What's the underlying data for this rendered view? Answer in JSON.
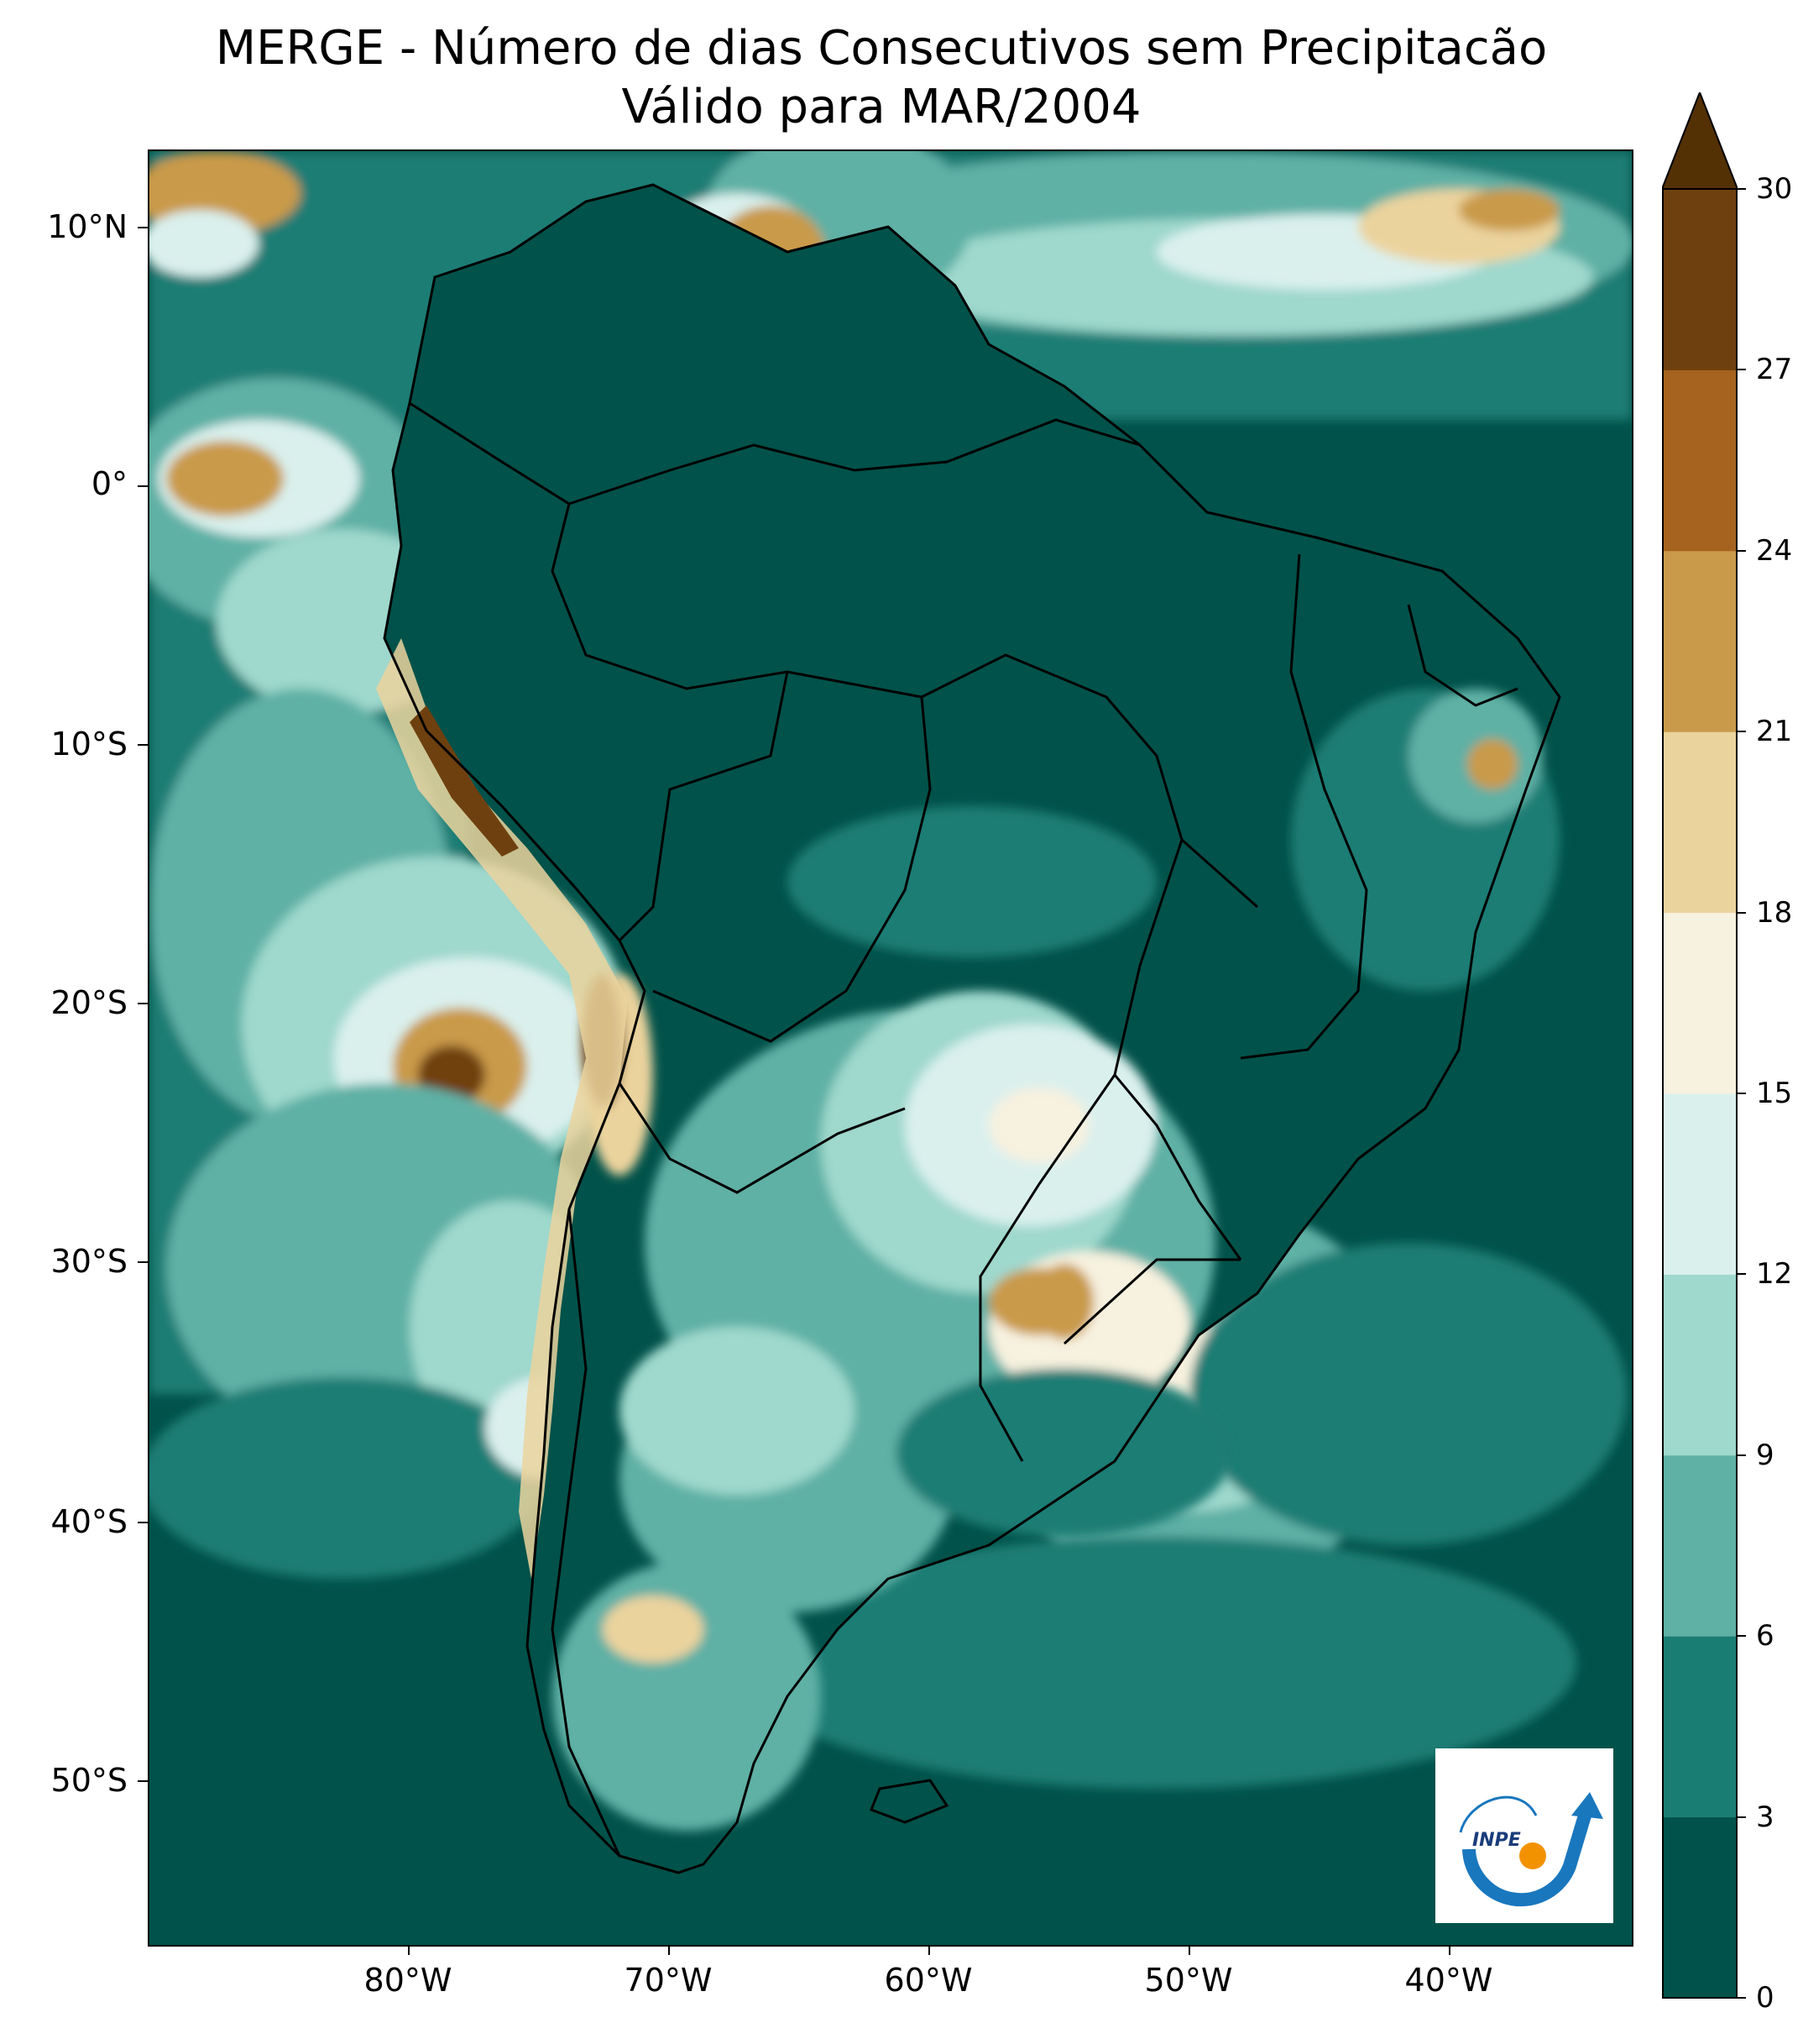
{
  "title": {
    "line1": "MERGE - Número de dias Consecutivos sem Precipitacão",
    "line2": "Válido para MAR/2004"
  },
  "axes": {
    "lat_labels": [
      "10°N",
      "0°",
      "10°S",
      "20°S",
      "30°S",
      "40°S",
      "50°S"
    ],
    "lon_labels": [
      "80°W",
      "70°W",
      "60°W",
      "50°W",
      "40°W"
    ]
  },
  "colorbar": {
    "ticks": [
      "0",
      "3",
      "6",
      "9",
      "12",
      "15",
      "18",
      "21",
      "24",
      "27",
      "30"
    ],
    "colors": [
      "#01524a",
      "#1a7d74",
      "#5fb0a5",
      "#9fd8cd",
      "#daf0ed",
      "#f7f1df",
      "#ebd39d",
      "#c99a4a",
      "#a6631f",
      "#6f400f"
    ],
    "extend_color": "#543005",
    "extend": "max"
  },
  "logo": {
    "text": "INPE"
  }
}
